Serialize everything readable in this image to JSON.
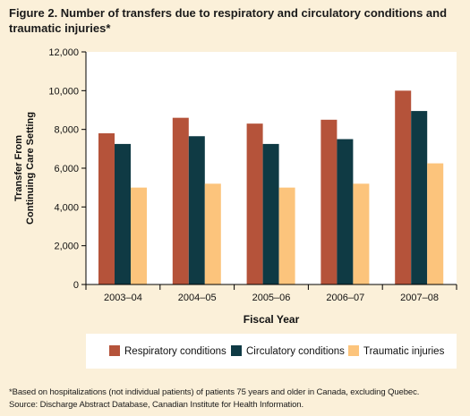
{
  "title": "Figure 2. Number of transfers due to respiratory and circulatory conditions and traumatic injuries*",
  "chart_data": {
    "type": "bar",
    "categories": [
      "2003–04",
      "2004–05",
      "2005–06",
      "2006–07",
      "2007–08"
    ],
    "series": [
      {
        "name": "Respiratory conditions",
        "color": "#b5533a",
        "values": [
          7800,
          8600,
          8300,
          8500,
          10000
        ]
      },
      {
        "name": "Circulatory conditions",
        "color": "#0f3a44",
        "values": [
          7250,
          7650,
          7250,
          7500,
          8950
        ]
      },
      {
        "name": "Traumatic injuries",
        "color": "#fcc47c",
        "values": [
          5000,
          5200,
          5000,
          5200,
          6250
        ]
      }
    ],
    "xlabel": "Fiscal Year",
    "ylabel_lines": [
      "Transfer From",
      "Continuing Care Setting"
    ],
    "ylim": [
      0,
      12000
    ],
    "yticks": [
      0,
      2000,
      4000,
      6000,
      8000,
      10000,
      12000
    ],
    "ytick_labels": [
      "0",
      "2,000",
      "4,000",
      "6,000",
      "8,000",
      "10,000",
      "12,000"
    ],
    "grid": false,
    "legend_position": "bottom"
  },
  "footnotes": [
    "*Based on hospitalizations (not individual patients) of patients 75 years and older in Canada, excluding Quebec.",
    "Source: Discharge Abstract Database, Canadian Institute for Health Information."
  ]
}
